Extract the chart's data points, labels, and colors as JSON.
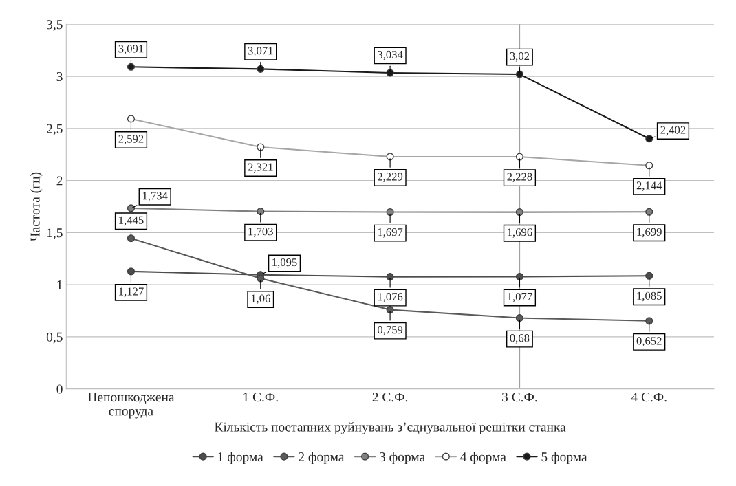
{
  "chart_data": {
    "type": "line",
    "xlabel": "Кількість поетапних руйнувань з’єднувальної решітки станка",
    "ylabel": "Частота (гц)",
    "categories": [
      "Непошкоджена\nспоруда",
      "1 С.Ф.",
      "2 С.Ф.",
      "3 С.Ф.",
      "4 С.Ф."
    ],
    "series": [
      {
        "name": "1 форма",
        "color": "#4d4d4d",
        "values": [
          1.127,
          1.095,
          1.076,
          1.077,
          1.085
        ],
        "value_labels": [
          "1,127",
          "1,095",
          "1,076",
          "1,077",
          "1,085"
        ]
      },
      {
        "name": "2 форма",
        "color": "#5a5a5a",
        "values": [
          1.445,
          1.06,
          0.759,
          0.68,
          0.652
        ],
        "value_labels": [
          "1,445",
          "1,06",
          "0,759",
          "0,68",
          "0,652"
        ]
      },
      {
        "name": "3 форма",
        "color": "#808080",
        "values": [
          1.734,
          1.703,
          1.697,
          1.696,
          1.699
        ],
        "value_labels": [
          "1,734",
          "1,703",
          "1,697",
          "1,696",
          "1,699"
        ]
      },
      {
        "name": "4 форма",
        "color": "#a6a6a6",
        "values": [
          2.592,
          2.321,
          2.229,
          2.228,
          2.144
        ],
        "value_labels": [
          "2,592",
          "2,321",
          "2,229",
          "2,228",
          "2,144"
        ]
      },
      {
        "name": "5 форма",
        "color": "#1a1a1a",
        "values": [
          3.091,
          3.071,
          3.034,
          3.02,
          2.402
        ],
        "value_labels": [
          "3,091",
          "3,071",
          "3,034",
          "3,02",
          "2,402"
        ]
      }
    ],
    "ylim": [
      0,
      3.5
    ],
    "yticks": [
      0,
      {
        "value": 0.5,
        "label": "0,5"
      },
      1,
      {
        "value": 1.5,
        "label": "1,5"
      },
      2,
      {
        "value": 2.5,
        "label": "2,5"
      },
      3,
      {
        "value": 3.5,
        "label": "3,5"
      }
    ],
    "grid": "y",
    "legend": "bottom",
    "marker": "circle",
    "line_style": "solid",
    "ref_lines": [
      {
        "axis": "x",
        "value": "3 С.Ф.",
        "color": "#a0a0a0"
      }
    ]
  }
}
